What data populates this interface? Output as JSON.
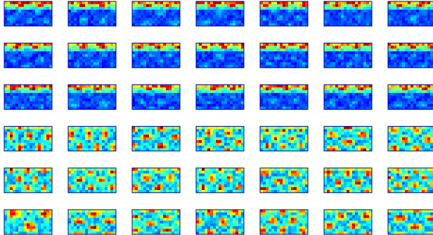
{
  "grid": {
    "rows": 6,
    "columns": 7
  }
}
